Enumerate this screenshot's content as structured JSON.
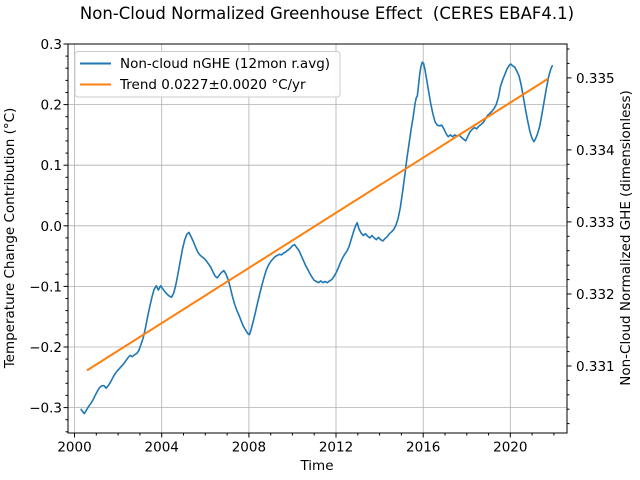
{
  "chart_data": {
    "type": "line",
    "title": "Non-Cloud Normalized Greenhouse Effect  (CERES EBAF4.1)",
    "xlabel": "Time",
    "ylabel_left": "Temperature Change Contribution (°C)",
    "ylabel_right": "Non-Cloud Normalized GHE (dimensionless)",
    "xlim": [
      1999.7,
      2022.6
    ],
    "ylim_left": [
      -0.342,
      0.3
    ],
    "ylim_right": [
      0.33007,
      0.33547
    ],
    "grid": true,
    "legend_position": "upper left",
    "colors": {
      "nghe_line": "#1f77b4",
      "trend_line": "#ff7f0e",
      "grid": "#b0b0b0",
      "spine": "#000000",
      "legend_border": "#cccccc",
      "background": "#ffffff"
    },
    "x_ticks": [
      {
        "v": 2000,
        "label": "2000"
      },
      {
        "v": 2004,
        "label": "2004"
      },
      {
        "v": 2008,
        "label": "2008"
      },
      {
        "v": 2012,
        "label": "2012"
      },
      {
        "v": 2016,
        "label": "2016"
      },
      {
        "v": 2020,
        "label": "2020"
      }
    ],
    "x_minor_step_years": 1,
    "y_left_ticks": [
      {
        "v": 0.3,
        "label": "0.3"
      },
      {
        "v": 0.2,
        "label": "0.2"
      },
      {
        "v": 0.1,
        "label": "0.1"
      },
      {
        "v": 0.0,
        "label": "0.0"
      },
      {
        "v": -0.1,
        "label": "−0.1"
      },
      {
        "v": -0.2,
        "label": "−0.2"
      },
      {
        "v": -0.3,
        "label": "−0.3"
      }
    ],
    "y_left_minor_step": 0.02,
    "y_right_ticks": [
      {
        "v": 0.335,
        "label": "0.335"
      },
      {
        "v": 0.334,
        "label": "0.334"
      },
      {
        "v": 0.333,
        "label": "0.333"
      },
      {
        "v": 0.332,
        "label": "0.332"
      },
      {
        "v": 0.331,
        "label": "0.331"
      }
    ],
    "y_right_minor_step": 0.0002,
    "series": [
      {
        "name": "Non-cloud nGHE (12mon r.avg)",
        "color": "#1f77b4",
        "width": 1.6,
        "points": [
          [
            2000.3,
            -0.303
          ],
          [
            2000.38,
            -0.307
          ],
          [
            2000.45,
            -0.31
          ],
          [
            2000.55,
            -0.304
          ],
          [
            2000.65,
            -0.298
          ],
          [
            2000.75,
            -0.293
          ],
          [
            2000.85,
            -0.287
          ],
          [
            2000.95,
            -0.28
          ],
          [
            2001.05,
            -0.273
          ],
          [
            2001.15,
            -0.267
          ],
          [
            2001.25,
            -0.264
          ],
          [
            2001.35,
            -0.264
          ],
          [
            2001.45,
            -0.268
          ],
          [
            2001.55,
            -0.264
          ],
          [
            2001.65,
            -0.258
          ],
          [
            2001.75,
            -0.251
          ],
          [
            2001.85,
            -0.245
          ],
          [
            2001.95,
            -0.24
          ],
          [
            2002.05,
            -0.236
          ],
          [
            2002.15,
            -0.232
          ],
          [
            2002.25,
            -0.228
          ],
          [
            2002.35,
            -0.223
          ],
          [
            2002.45,
            -0.218
          ],
          [
            2002.55,
            -0.214
          ],
          [
            2002.65,
            -0.216
          ],
          [
            2002.75,
            -0.213
          ],
          [
            2002.85,
            -0.211
          ],
          [
            2002.95,
            -0.206
          ],
          [
            2003.05,
            -0.196
          ],
          [
            2003.15,
            -0.185
          ],
          [
            2003.25,
            -0.169
          ],
          [
            2003.35,
            -0.151
          ],
          [
            2003.45,
            -0.134
          ],
          [
            2003.55,
            -0.118
          ],
          [
            2003.65,
            -0.105
          ],
          [
            2003.75,
            -0.099
          ],
          [
            2003.85,
            -0.106
          ],
          [
            2003.95,
            -0.099
          ],
          [
            2004.05,
            -0.104
          ],
          [
            2004.15,
            -0.109
          ],
          [
            2004.25,
            -0.113
          ],
          [
            2004.35,
            -0.116
          ],
          [
            2004.45,
            -0.118
          ],
          [
            2004.55,
            -0.111
          ],
          [
            2004.65,
            -0.097
          ],
          [
            2004.75,
            -0.079
          ],
          [
            2004.85,
            -0.059
          ],
          [
            2004.95,
            -0.039
          ],
          [
            2005.05,
            -0.024
          ],
          [
            2005.15,
            -0.014
          ],
          [
            2005.25,
            -0.011
          ],
          [
            2005.35,
            -0.018
          ],
          [
            2005.45,
            -0.026
          ],
          [
            2005.55,
            -0.035
          ],
          [
            2005.65,
            -0.043
          ],
          [
            2005.75,
            -0.048
          ],
          [
            2005.85,
            -0.051
          ],
          [
            2005.95,
            -0.054
          ],
          [
            2006.05,
            -0.058
          ],
          [
            2006.15,
            -0.063
          ],
          [
            2006.25,
            -0.068
          ],
          [
            2006.35,
            -0.076
          ],
          [
            2006.45,
            -0.083
          ],
          [
            2006.55,
            -0.086
          ],
          [
            2006.65,
            -0.081
          ],
          [
            2006.75,
            -0.077
          ],
          [
            2006.85,
            -0.074
          ],
          [
            2006.95,
            -0.08
          ],
          [
            2007.05,
            -0.089
          ],
          [
            2007.15,
            -0.102
          ],
          [
            2007.25,
            -0.117
          ],
          [
            2007.35,
            -0.13
          ],
          [
            2007.45,
            -0.14
          ],
          [
            2007.55,
            -0.148
          ],
          [
            2007.65,
            -0.157
          ],
          [
            2007.75,
            -0.166
          ],
          [
            2007.85,
            -0.172
          ],
          [
            2007.95,
            -0.178
          ],
          [
            2008.02,
            -0.18
          ],
          [
            2008.1,
            -0.172
          ],
          [
            2008.2,
            -0.158
          ],
          [
            2008.3,
            -0.143
          ],
          [
            2008.4,
            -0.127
          ],
          [
            2008.5,
            -0.112
          ],
          [
            2008.6,
            -0.098
          ],
          [
            2008.7,
            -0.085
          ],
          [
            2008.8,
            -0.073
          ],
          [
            2008.9,
            -0.065
          ],
          [
            2009.0,
            -0.059
          ],
          [
            2009.1,
            -0.055
          ],
          [
            2009.2,
            -0.051
          ],
          [
            2009.3,
            -0.049
          ],
          [
            2009.4,
            -0.047
          ],
          [
            2009.5,
            -0.048
          ],
          [
            2009.6,
            -0.045
          ],
          [
            2009.7,
            -0.043
          ],
          [
            2009.8,
            -0.04
          ],
          [
            2009.9,
            -0.037
          ],
          [
            2010.0,
            -0.033
          ],
          [
            2010.1,
            -0.031
          ],
          [
            2010.2,
            -0.036
          ],
          [
            2010.3,
            -0.041
          ],
          [
            2010.4,
            -0.049
          ],
          [
            2010.5,
            -0.057
          ],
          [
            2010.6,
            -0.065
          ],
          [
            2010.7,
            -0.072
          ],
          [
            2010.8,
            -0.079
          ],
          [
            2010.9,
            -0.085
          ],
          [
            2011.0,
            -0.09
          ],
          [
            2011.1,
            -0.092
          ],
          [
            2011.2,
            -0.094
          ],
          [
            2011.3,
            -0.091
          ],
          [
            2011.4,
            -0.094
          ],
          [
            2011.5,
            -0.092
          ],
          [
            2011.6,
            -0.094
          ],
          [
            2011.7,
            -0.091
          ],
          [
            2011.8,
            -0.089
          ],
          [
            2011.9,
            -0.084
          ],
          [
            2012.0,
            -0.078
          ],
          [
            2012.1,
            -0.07
          ],
          [
            2012.2,
            -0.061
          ],
          [
            2012.3,
            -0.053
          ],
          [
            2012.4,
            -0.047
          ],
          [
            2012.5,
            -0.042
          ],
          [
            2012.6,
            -0.034
          ],
          [
            2012.7,
            -0.022
          ],
          [
            2012.8,
            -0.01
          ],
          [
            2012.9,
            0.0
          ],
          [
            2012.97,
            0.005
          ],
          [
            2013.05,
            -0.005
          ],
          [
            2013.15,
            -0.012
          ],
          [
            2013.25,
            -0.016
          ],
          [
            2013.35,
            -0.013
          ],
          [
            2013.45,
            -0.017
          ],
          [
            2013.55,
            -0.02
          ],
          [
            2013.65,
            -0.016
          ],
          [
            2013.75,
            -0.02
          ],
          [
            2013.85,
            -0.023
          ],
          [
            2013.95,
            -0.019
          ],
          [
            2014.05,
            -0.023
          ],
          [
            2014.15,
            -0.025
          ],
          [
            2014.25,
            -0.021
          ],
          [
            2014.35,
            -0.018
          ],
          [
            2014.45,
            -0.013
          ],
          [
            2014.55,
            -0.01
          ],
          [
            2014.65,
            -0.006
          ],
          [
            2014.75,
            0.001
          ],
          [
            2014.85,
            0.012
          ],
          [
            2014.95,
            0.03
          ],
          [
            2015.05,
            0.055
          ],
          [
            2015.15,
            0.082
          ],
          [
            2015.25,
            0.11
          ],
          [
            2015.35,
            0.135
          ],
          [
            2015.45,
            0.16
          ],
          [
            2015.55,
            0.182
          ],
          [
            2015.62,
            0.2
          ],
          [
            2015.68,
            0.211
          ],
          [
            2015.73,
            0.214
          ],
          [
            2015.78,
            0.23
          ],
          [
            2015.84,
            0.25
          ],
          [
            2015.9,
            0.263
          ],
          [
            2015.96,
            0.27
          ],
          [
            2016.02,
            0.268
          ],
          [
            2016.08,
            0.258
          ],
          [
            2016.15,
            0.243
          ],
          [
            2016.25,
            0.222
          ],
          [
            2016.35,
            0.201
          ],
          [
            2016.45,
            0.184
          ],
          [
            2016.55,
            0.171
          ],
          [
            2016.65,
            0.166
          ],
          [
            2016.75,
            0.165
          ],
          [
            2016.85,
            0.166
          ],
          [
            2016.95,
            0.16
          ],
          [
            2017.05,
            0.152
          ],
          [
            2017.15,
            0.147
          ],
          [
            2017.25,
            0.15
          ],
          [
            2017.35,
            0.147
          ],
          [
            2017.45,
            0.15
          ],
          [
            2017.55,
            0.148
          ],
          [
            2017.65,
            0.15
          ],
          [
            2017.75,
            0.146
          ],
          [
            2017.85,
            0.143
          ],
          [
            2017.95,
            0.14
          ],
          [
            2018.05,
            0.148
          ],
          [
            2018.15,
            0.155
          ],
          [
            2018.25,
            0.159
          ],
          [
            2018.35,
            0.162
          ],
          [
            2018.45,
            0.16
          ],
          [
            2018.55,
            0.164
          ],
          [
            2018.65,
            0.167
          ],
          [
            2018.75,
            0.17
          ],
          [
            2018.85,
            0.176
          ],
          [
            2018.95,
            0.182
          ],
          [
            2019.05,
            0.185
          ],
          [
            2019.15,
            0.189
          ],
          [
            2019.25,
            0.193
          ],
          [
            2019.35,
            0.2
          ],
          [
            2019.45,
            0.212
          ],
          [
            2019.55,
            0.23
          ],
          [
            2019.65,
            0.241
          ],
          [
            2019.75,
            0.25
          ],
          [
            2019.85,
            0.259
          ],
          [
            2019.95,
            0.265
          ],
          [
            2020.02,
            0.267
          ],
          [
            2020.1,
            0.264
          ],
          [
            2020.2,
            0.262
          ],
          [
            2020.3,
            0.255
          ],
          [
            2020.4,
            0.247
          ],
          [
            2020.5,
            0.232
          ],
          [
            2020.6,
            0.212
          ],
          [
            2020.7,
            0.191
          ],
          [
            2020.8,
            0.172
          ],
          [
            2020.9,
            0.155
          ],
          [
            2021.0,
            0.144
          ],
          [
            2021.08,
            0.139
          ],
          [
            2021.15,
            0.143
          ],
          [
            2021.25,
            0.152
          ],
          [
            2021.35,
            0.165
          ],
          [
            2021.45,
            0.184
          ],
          [
            2021.55,
            0.205
          ],
          [
            2021.65,
            0.226
          ],
          [
            2021.75,
            0.245
          ],
          [
            2021.85,
            0.258
          ],
          [
            2021.92,
            0.264
          ]
        ]
      },
      {
        "name": "Trend 0.0227±0.0020 °C/yr",
        "color": "#ff7f0e",
        "width": 2.0,
        "points": [
          [
            2000.6,
            -0.238
          ],
          [
            2021.7,
            0.242
          ]
        ]
      }
    ]
  }
}
